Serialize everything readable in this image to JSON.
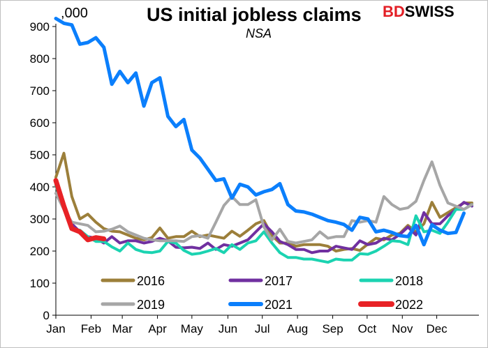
{
  "title": "US initial jobless claims",
  "subtitle": "NSA",
  "units": ",000",
  "logo": {
    "bd": "BD",
    "swiss": "SWISS"
  },
  "chart_data": {
    "type": "line",
    "title": "US initial jobless claims",
    "subtitle": "NSA",
    "ylabel": ",000",
    "xlabel": "",
    "ylim": [
      0,
      900
    ],
    "yticks": [
      0,
      100,
      200,
      300,
      400,
      500,
      600,
      700,
      800,
      900
    ],
    "xlim": [
      1,
      53
    ],
    "x_unit": "week of year",
    "month_labels": [
      {
        "label": "Jan",
        "x": 1
      },
      {
        "label": "Feb",
        "x": 5.4
      },
      {
        "label": "Mar",
        "x": 9.3
      },
      {
        "label": "Apr",
        "x": 13.7
      },
      {
        "label": "May",
        "x": 18
      },
      {
        "label": "Jun",
        "x": 22.5
      },
      {
        "label": "Jul",
        "x": 26.8
      },
      {
        "label": "Aug",
        "x": 31.2
      },
      {
        "label": "Sep",
        "x": 35.6
      },
      {
        "label": "Oct",
        "x": 39.9
      },
      {
        "label": "Nov",
        "x": 44.3
      },
      {
        "label": "Dec",
        "x": 48.6
      }
    ],
    "grid": false,
    "legend_position": "bottom inside plot",
    "series": [
      {
        "name": "2016",
        "color": "#9c7f3a",
        "width": 4,
        "start_week": 1,
        "values": [
          430,
          505,
          370,
          300,
          315,
          290,
          270,
          262,
          260,
          250,
          240,
          235,
          242,
          272,
          240,
          245,
          245,
          262,
          245,
          250,
          245,
          240,
          262,
          246,
          265,
          285,
          295,
          248,
          225,
          225,
          215,
          220,
          220,
          220,
          215,
          200,
          205,
          208,
          202,
          222,
          240,
          235,
          250,
          255,
          280,
          260,
          285,
          352,
          305,
          320,
          335,
          350,
          350
        ]
      },
      {
        "name": "2017",
        "color": "#7030a0",
        "width": 4,
        "start_week": 1,
        "values": [
          415,
          340,
          285,
          260,
          245,
          240,
          225,
          245,
          225,
          232,
          232,
          225,
          230,
          240,
          232,
          212,
          210,
          212,
          208,
          225,
          205,
          220,
          215,
          225,
          235,
          260,
          285,
          260,
          230,
          220,
          205,
          205,
          195,
          200,
          200,
          215,
          210,
          205,
          232,
          220,
          225,
          240,
          235,
          252,
          275,
          250,
          320,
          285,
          285,
          310,
          330,
          352,
          340
        ]
      },
      {
        "name": "2018",
        "color": "#1bd3b1",
        "width": 4,
        "start_week": 1,
        "values": [
          405,
          330,
          270,
          265,
          245,
          230,
          230,
          213,
          200,
          225,
          205,
          197,
          195,
          200,
          230,
          225,
          202,
          190,
          193,
          200,
          208,
          195,
          220,
          205,
          225,
          232,
          260,
          225,
          195,
          180,
          180,
          175,
          175,
          170,
          165,
          175,
          172,
          172,
          192,
          190,
          200,
          215,
          232,
          230,
          220,
          310,
          260,
          265,
          255,
          290,
          330,
          330,
          345
        ]
      },
      {
        "name": "2019",
        "color": "#a6a6a6",
        "width": 4,
        "start_week": 1,
        "values": [
          380,
          330,
          290,
          285,
          280,
          260,
          262,
          268,
          278,
          260,
          250,
          240,
          235,
          232,
          232,
          232,
          230,
          245,
          248,
          240,
          290,
          342,
          370,
          345,
          345,
          360,
          275,
          235,
          268,
          230,
          225,
          230,
          235,
          260,
          240,
          245,
          245,
          295,
          290,
          295,
          290,
          370,
          345,
          330,
          335,
          355,
          420,
          478,
          405,
          350,
          340,
          330,
          345
        ]
      },
      {
        "name": "2021",
        "color": "#0b7ffc",
        "width": 5,
        "start_week": 1,
        "values": [
          925,
          910,
          905,
          845,
          850,
          865,
          835,
          720,
          760,
          725,
          755,
          652,
          725,
          740,
          620,
          588,
          610,
          515,
          490,
          455,
          420,
          425,
          365,
          408,
          400,
          375,
          385,
          392,
          410,
          345,
          325,
          322,
          315,
          305,
          295,
          290,
          283,
          265,
          305,
          300,
          260,
          265,
          258,
          248,
          245,
          280,
          220,
          282,
          265,
          255,
          258,
          318
        ]
      },
      {
        "name": "2022",
        "color": "#e82226",
        "width": 7,
        "start_week": 1,
        "values": [
          420,
          340,
          270,
          260,
          235,
          242,
          238
        ]
      }
    ]
  }
}
